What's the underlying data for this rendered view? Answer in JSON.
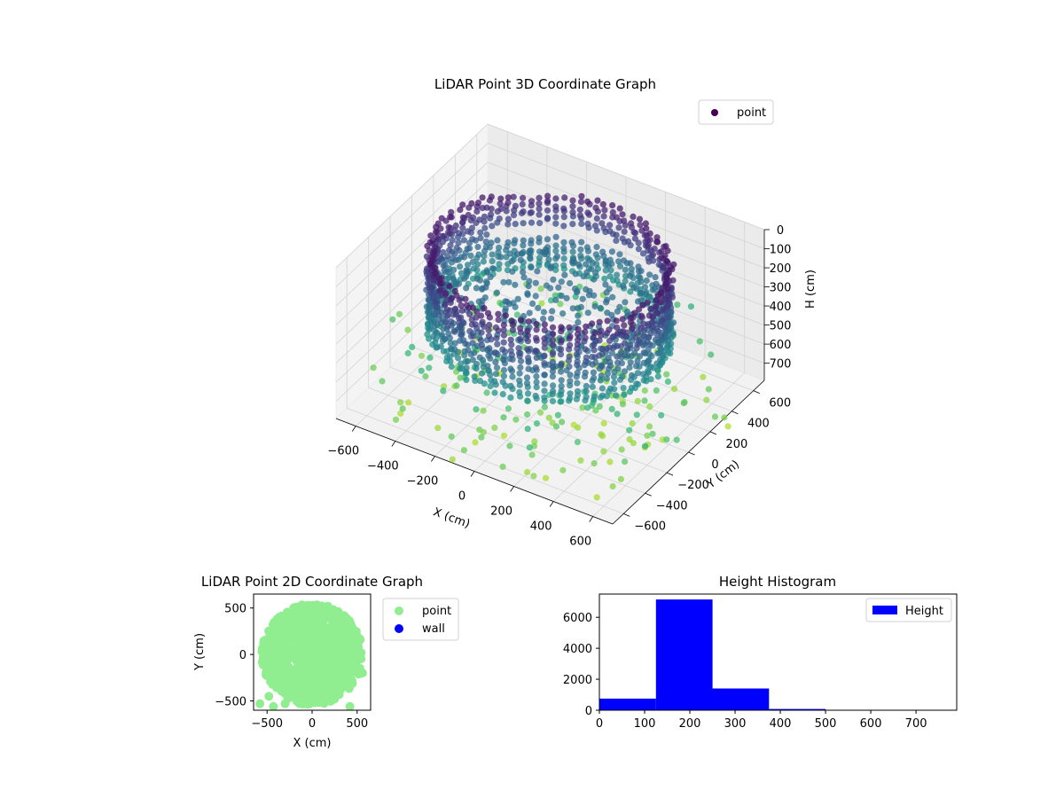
{
  "chart_data": [
    {
      "type": "scatter3d",
      "title": "LiDAR Point 3D Coordinate Graph",
      "xlabel": "X (cm)",
      "ylabel": "Y (cm)",
      "zlabel": "H (cm)",
      "xlim": [
        -700,
        700
      ],
      "ylim": [
        -700,
        700
      ],
      "zlim": [
        0,
        790
      ],
      "z_inverted": true,
      "x_ticks": [
        -600,
        -400,
        -200,
        0,
        200,
        400,
        600
      ],
      "y_ticks": [
        -600,
        -400,
        -200,
        0,
        200,
        400,
        600
      ],
      "z_ticks": [
        0,
        100,
        200,
        300,
        400,
        500,
        600,
        700
      ],
      "colormap": "viridis (by height)",
      "legend": {
        "position": "top-right",
        "entries": [
          {
            "name": "point",
            "color": "#440154"
          }
        ]
      },
      "grid": true,
      "series": [
        {
          "name": "point",
          "description": "approx. cylindrical wall of radius ~550 cm with dense cluster at heights 150-450 cm, scattered sparse points near ground"
        }
      ]
    },
    {
      "type": "scatter",
      "title": "LiDAR Point 2D Coordinate Graph",
      "xlabel": "X (cm)",
      "ylabel": "Y (cm)",
      "xlim": [
        -650,
        650
      ],
      "ylim": [
        -600,
        650
      ],
      "x_ticks": [
        -500,
        0,
        500
      ],
      "y_ticks": [
        -500,
        0,
        500
      ],
      "legend": {
        "position": "outside-right",
        "entries": [
          {
            "name": "point",
            "color": "#90ee90"
          },
          {
            "name": "wall",
            "color": "#0000ff"
          }
        ]
      },
      "series": [
        {
          "name": "point",
          "description": "dense disk centered near origin radius ~550 cm"
        },
        {
          "name": "wall",
          "values": []
        }
      ]
    },
    {
      "type": "bar",
      "subtype": "histogram",
      "title": "Height Histogram",
      "xlabel": "",
      "ylabel": "",
      "bin_edges": [
        0,
        125,
        250,
        375,
        500,
        625,
        750
      ],
      "values": [
        750,
        7150,
        1400,
        80,
        10,
        5
      ],
      "xlim": [
        0,
        790
      ],
      "ylim": [
        0,
        7500
      ],
      "x_ticks": [
        0,
        100,
        200,
        300,
        400,
        500,
        600,
        700
      ],
      "y_ticks": [
        0,
        2000,
        4000,
        6000
      ],
      "color": "#0000ff",
      "legend": {
        "position": "top-right",
        "entries": [
          {
            "name": "Height",
            "color": "#0000ff"
          }
        ]
      }
    }
  ]
}
